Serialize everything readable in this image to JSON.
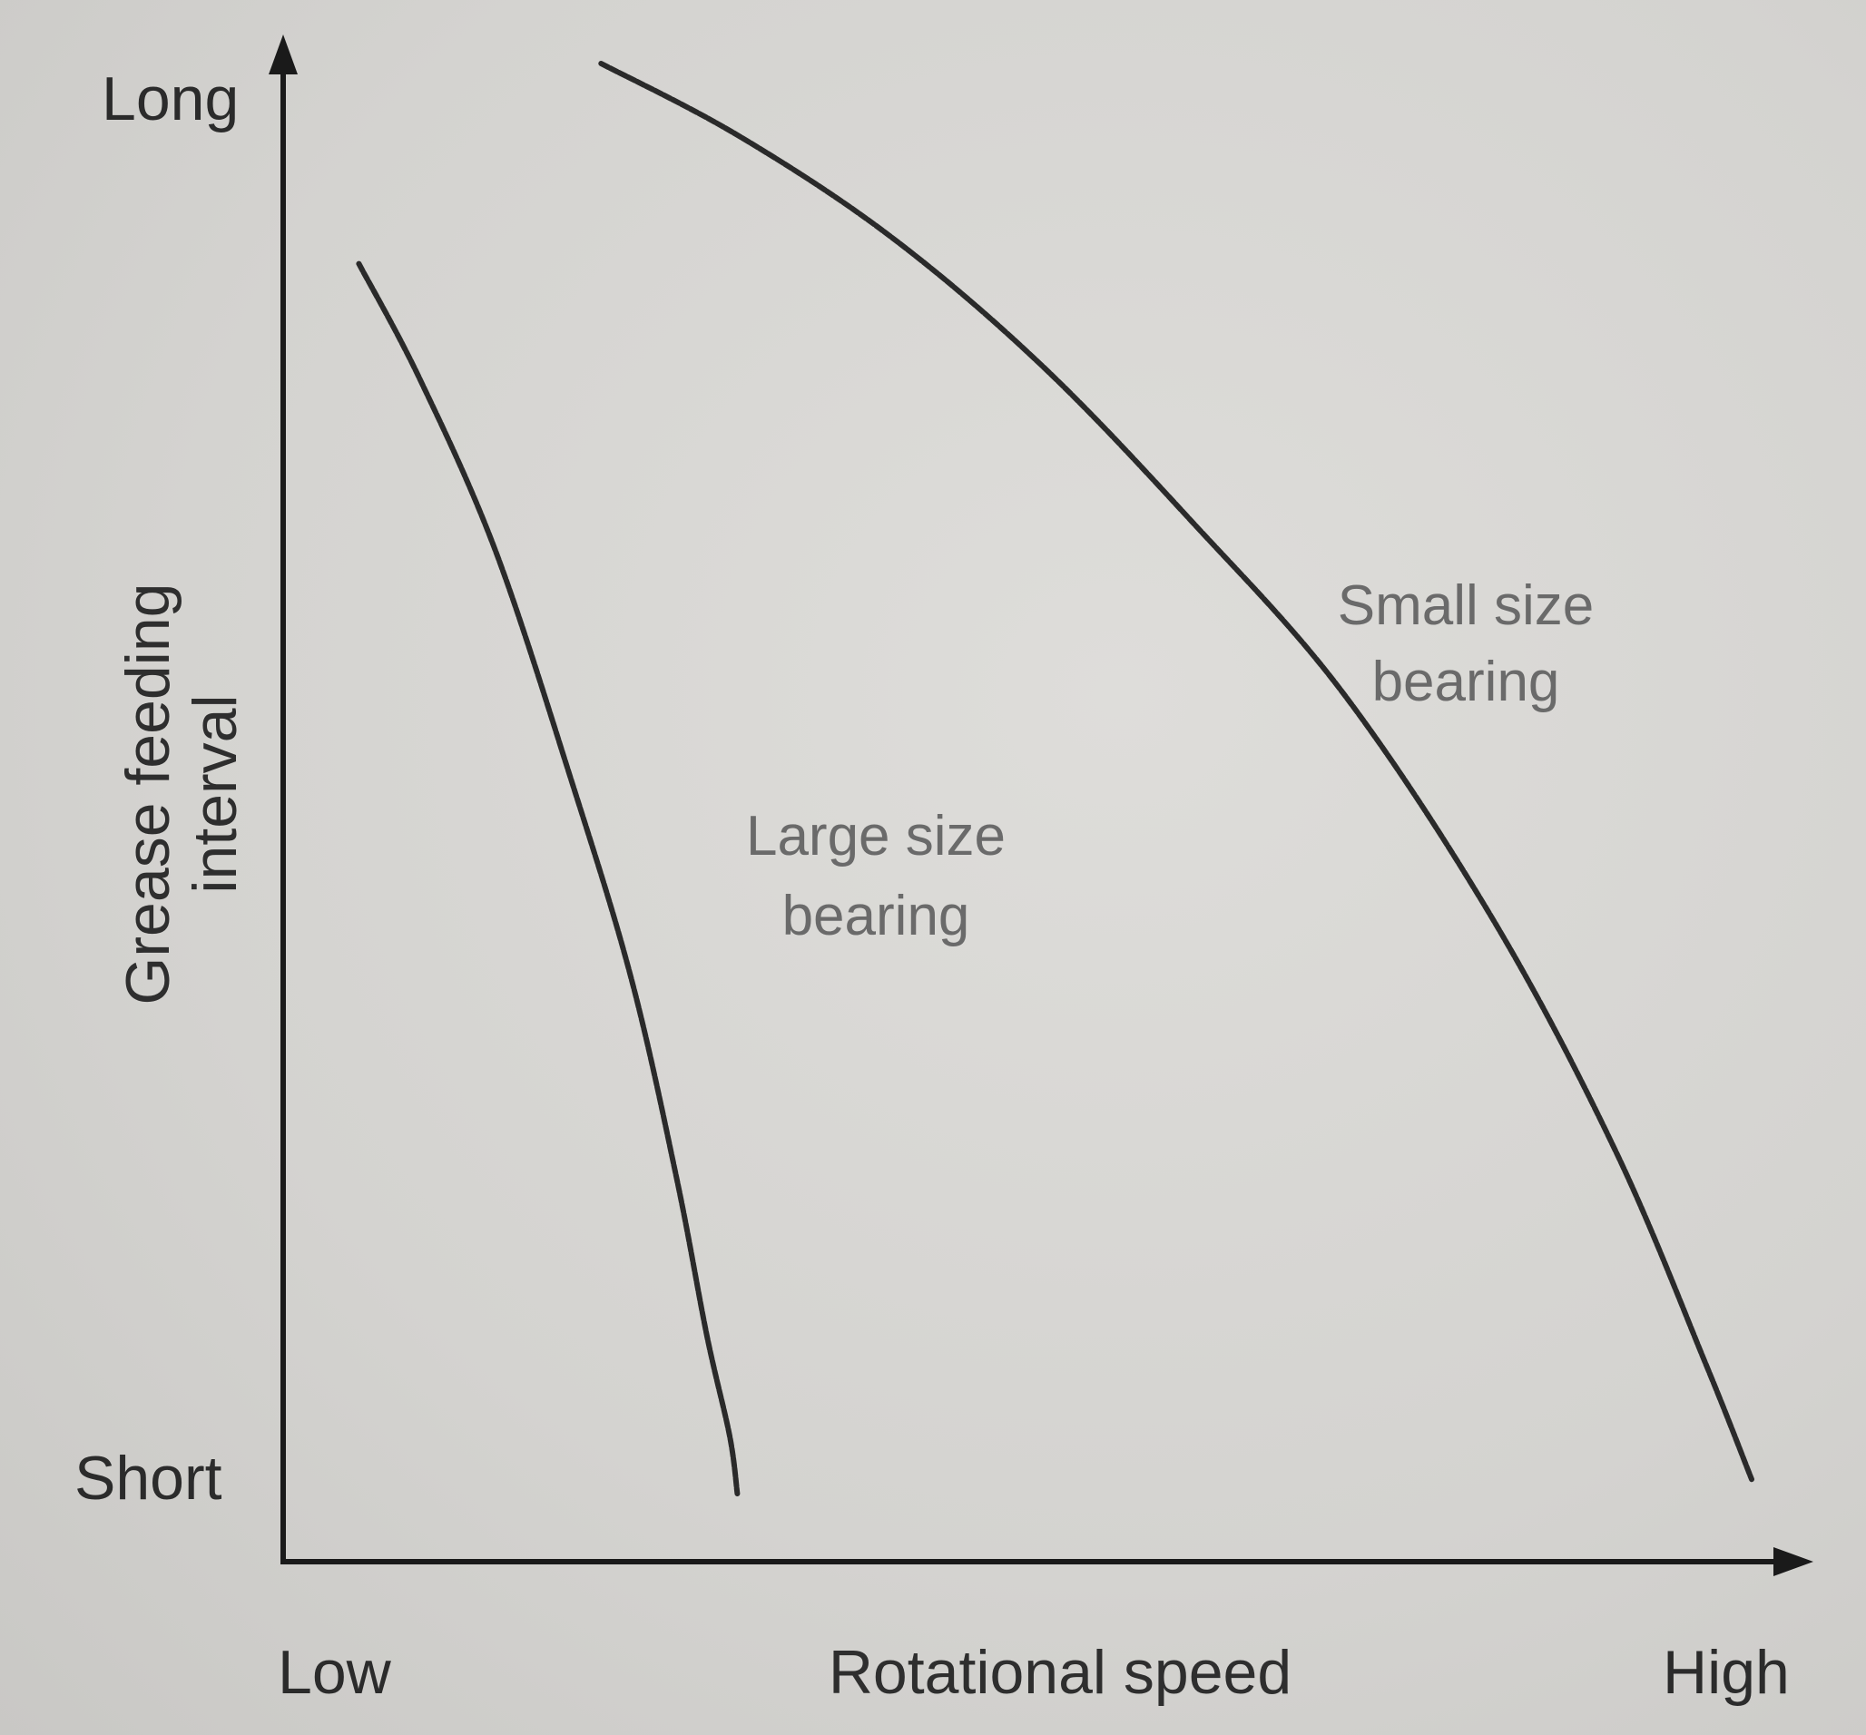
{
  "chart_data": {
    "type": "line",
    "title": "",
    "xlabel": "Rotational speed",
    "ylabel_lines": [
      "Grease feeding",
      "interval"
    ],
    "x_tick_labels": [
      "Low",
      "High"
    ],
    "y_tick_labels": [
      "Short",
      "Long"
    ],
    "xlim": [
      0,
      1
    ],
    "ylim": [
      0,
      1
    ],
    "grid": false,
    "series": [
      {
        "name_lines": [
          "Large size",
          "bearing"
        ],
        "x": [
          0.05,
          0.09,
          0.14,
          0.19,
          0.23,
          0.26,
          0.28,
          0.295,
          0.3
        ],
        "y": [
          0.86,
          0.78,
          0.66,
          0.5,
          0.36,
          0.22,
          0.11,
          0.04,
          0.0
        ]
      },
      {
        "name_lines": [
          "Small size",
          "bearing"
        ],
        "x": [
          0.21,
          0.3,
          0.4,
          0.5,
          0.6,
          0.7,
          0.8,
          0.88,
          0.94,
          0.97
        ],
        "y": [
          1.0,
          0.95,
          0.88,
          0.79,
          0.68,
          0.56,
          0.4,
          0.24,
          0.09,
          0.01
        ]
      }
    ]
  }
}
